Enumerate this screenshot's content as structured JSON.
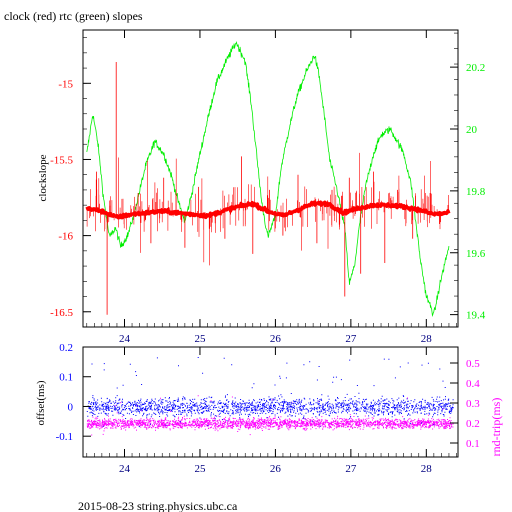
{
  "chart_data": [
    {
      "type": "line",
      "title": "clock (red) rtc (green) slopes",
      "xlabel": "",
      "ylabel": "clockslope",
      "ylim": [
        -16.6,
        -14.65
      ],
      "y2lim": [
        19.36,
        20.32
      ],
      "xlim": [
        23.45,
        28.42
      ],
      "xticks": [
        "24",
        "25",
        "26",
        "27",
        "28"
      ],
      "yticks_left": [
        "-15",
        "-15.5",
        "-16",
        "-16.5"
      ],
      "yticks_right": [
        "20.2",
        "20",
        "19.8",
        "19.6",
        "19.4"
      ],
      "series": [
        {
          "name": "clock",
          "axis": "left",
          "color": "#ff0000",
          "baseline_x": [
            23.5,
            23.7,
            23.9,
            24.1,
            24.3,
            24.5,
            24.7,
            24.9,
            25.1,
            25.3,
            25.5,
            25.7,
            25.9,
            26.1,
            26.3,
            26.5,
            26.7,
            26.9,
            27.1,
            27.3,
            27.5,
            27.7,
            27.9,
            28.1,
            28.3
          ],
          "baseline_y": [
            -15.82,
            -15.84,
            -15.88,
            -15.86,
            -15.85,
            -15.84,
            -15.85,
            -15.86,
            -15.87,
            -15.84,
            -15.81,
            -15.79,
            -15.84,
            -15.87,
            -15.83,
            -15.79,
            -15.79,
            -15.85,
            -15.82,
            -15.8,
            -15.8,
            -15.81,
            -15.83,
            -15.86,
            -15.85
          ],
          "spikes": [
            {
              "x": 23.63,
              "y": -15.58
            },
            {
              "x": 23.77,
              "y": -16.52
            },
            {
              "x": 23.89,
              "y": -14.86
            },
            {
              "x": 24.18,
              "y": -15.72
            },
            {
              "x": 24.35,
              "y": -16.05
            },
            {
              "x": 24.52,
              "y": -15.62
            },
            {
              "x": 24.8,
              "y": -16.08
            },
            {
              "x": 24.98,
              "y": -15.68
            },
            {
              "x": 25.33,
              "y": -16.02
            },
            {
              "x": 25.55,
              "y": -15.48
            },
            {
              "x": 25.7,
              "y": -16.12
            },
            {
              "x": 25.92,
              "y": -15.7
            },
            {
              "x": 26.1,
              "y": -16.0
            },
            {
              "x": 26.3,
              "y": -15.6
            },
            {
              "x": 26.55,
              "y": -16.05
            },
            {
              "x": 26.75,
              "y": -15.7
            },
            {
              "x": 26.92,
              "y": -16.4
            },
            {
              "x": 26.98,
              "y": -15.62
            },
            {
              "x": 27.13,
              "y": -16.25
            },
            {
              "x": 27.3,
              "y": -15.58
            },
            {
              "x": 27.45,
              "y": -16.18
            },
            {
              "x": 27.62,
              "y": -15.7
            },
            {
              "x": 27.82,
              "y": -16.02
            },
            {
              "x": 28.05,
              "y": -15.72
            }
          ]
        },
        {
          "name": "rtc",
          "axis": "right",
          "color": "#00ee00",
          "x": [
            23.5,
            23.58,
            23.65,
            23.72,
            23.8,
            23.88,
            23.95,
            24.05,
            24.12,
            24.2,
            24.28,
            24.4,
            24.52,
            24.62,
            24.72,
            24.8,
            24.9,
            25.0,
            25.12,
            25.22,
            25.35,
            25.48,
            25.6,
            25.68,
            25.75,
            25.82,
            25.9,
            26.0,
            26.08,
            26.18,
            26.28,
            26.4,
            26.52,
            26.58,
            26.65,
            26.72,
            26.82,
            26.92,
            26.98,
            27.05,
            27.12,
            27.2,
            27.3,
            27.4,
            27.52,
            27.62,
            27.7,
            27.8,
            27.92,
            28.0,
            28.1,
            28.2,
            28.3
          ],
          "y": [
            19.92,
            20.05,
            19.95,
            19.78,
            19.65,
            19.68,
            19.62,
            19.66,
            19.72,
            19.8,
            19.88,
            19.96,
            19.92,
            19.85,
            19.76,
            19.7,
            19.8,
            19.92,
            20.05,
            20.15,
            20.22,
            20.28,
            20.22,
            20.08,
            19.92,
            19.76,
            19.65,
            19.72,
            19.88,
            20.0,
            20.1,
            20.18,
            20.24,
            20.17,
            20.04,
            19.9,
            19.8,
            19.68,
            19.5,
            19.56,
            19.7,
            19.82,
            19.92,
            19.98,
            20.0,
            19.96,
            19.92,
            19.82,
            19.58,
            19.46,
            19.4,
            19.52,
            19.62
          ]
        }
      ]
    },
    {
      "type": "scatter",
      "xlabel": "",
      "ylabel": "offset(ms)",
      "y2label": "rnd-trip(ms)",
      "ylim": [
        -0.17,
        0.2
      ],
      "y2lim": [
        0.03,
        0.58
      ],
      "xlim": [
        23.45,
        28.42
      ],
      "xticks": [
        "24",
        "25",
        "26",
        "27",
        "28"
      ],
      "yticks_left": [
        "0.2",
        "0.1",
        "0",
        "-0.1"
      ],
      "yticks_right": [
        "0.5",
        "0.4",
        "0.3",
        "0.2",
        "0.1"
      ],
      "series": [
        {
          "name": "offset",
          "axis": "left",
          "color": "#0000ff",
          "x_range": [
            23.5,
            28.35
          ],
          "y_center": 0.0,
          "y_spread": 0.03
        },
        {
          "name": "rnd-trip",
          "axis": "right",
          "color": "#ff00ff",
          "x_range": [
            23.5,
            28.35
          ],
          "y_center": 0.2,
          "y_spread": 0.025
        }
      ]
    }
  ],
  "footer": {
    "text": "2015-08-23  string.physics.ubc.ca"
  },
  "colors": {
    "clock": "#ff0000",
    "rtc": "#00ee00",
    "offset": "#0000ff",
    "rndtrip": "#ff00ff",
    "axes": "#000000"
  }
}
